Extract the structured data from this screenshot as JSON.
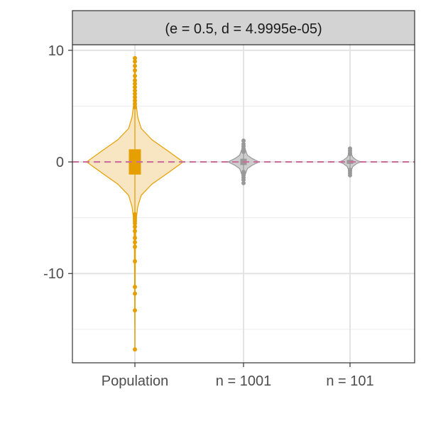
{
  "chart_data": {
    "type": "violin",
    "title": "",
    "facet_label": "(e = 0.5, d = 4.9995e-05)",
    "xlabel": "",
    "ylabel": "",
    "categories": [
      "Population",
      "n = 1001",
      "n = 101"
    ],
    "ylim": [
      -18,
      10.5
    ],
    "y_ticks": [
      10,
      0,
      -10
    ],
    "y_tick_labels": [
      "10",
      "0",
      "-10"
    ],
    "reference_line": {
      "y": 0,
      "style": "dashed",
      "color": "#cc6f9c"
    },
    "grid": true,
    "series": [
      {
        "category": "Population",
        "color": "#e69f00",
        "fill": "#f6dcae",
        "density": [
          [
            -16.8,
            0.0
          ],
          [
            -12,
            0.004
          ],
          [
            -8,
            0.01
          ],
          [
            -6,
            0.018
          ],
          [
            -5,
            0.03
          ],
          [
            -4,
            0.06
          ],
          [
            -3,
            0.13
          ],
          [
            -2,
            0.35
          ],
          [
            -1,
            0.68
          ],
          [
            0,
            1.0
          ],
          [
            1,
            0.68
          ],
          [
            2,
            0.35
          ],
          [
            3,
            0.13
          ],
          [
            4,
            0.06
          ],
          [
            5,
            0.03
          ],
          [
            6,
            0.018
          ],
          [
            8,
            0.01
          ],
          [
            9.3,
            0.0
          ]
        ],
        "box": {
          "q1": -1.1,
          "median": 0.0,
          "q3": 1.1,
          "whisker_low": -16.8,
          "whisker_high": 9.3
        },
        "outliers": [
          9.3,
          9.0,
          8.6,
          8.2,
          7.7,
          7.3,
          7.0,
          6.7,
          6.4,
          6.1,
          5.8,
          5.5,
          5.2,
          4.9,
          -4.7,
          -4.9,
          -5.1,
          -5.3,
          -5.5,
          -5.8,
          -6.2,
          -6.8,
          -7.2,
          -7.6,
          -8.9,
          -11.2,
          -11.8,
          -13.3,
          -16.8
        ]
      },
      {
        "category": "n = 1001",
        "color": "#999999",
        "fill": "#bdbdbd",
        "density": [
          [
            -1.9,
            0.0
          ],
          [
            -1.2,
            0.03
          ],
          [
            -0.6,
            0.08
          ],
          [
            -0.3,
            0.18
          ],
          [
            0,
            0.32
          ],
          [
            0.3,
            0.18
          ],
          [
            0.6,
            0.08
          ],
          [
            1.2,
            0.03
          ],
          [
            1.9,
            0.0
          ]
        ],
        "box": {
          "q1": -0.25,
          "median": 0.0,
          "q3": 0.25,
          "whisker_low": -1.9,
          "whisker_high": 1.9
        },
        "outliers": [
          1.9,
          1.6,
          1.4,
          1.2,
          1.0,
          0.9,
          -0.9,
          -1.0,
          -1.2,
          -1.4,
          -1.6,
          -1.9
        ]
      },
      {
        "category": "n = 101",
        "color": "#999999",
        "fill": "#bdbdbd",
        "density": [
          [
            -1.2,
            0.0
          ],
          [
            -0.8,
            0.02
          ],
          [
            -0.4,
            0.06
          ],
          [
            -0.15,
            0.14
          ],
          [
            0,
            0.22
          ],
          [
            0.15,
            0.14
          ],
          [
            0.4,
            0.06
          ],
          [
            0.8,
            0.02
          ],
          [
            1.2,
            0.0
          ]
        ],
        "box": {
          "q1": -0.15,
          "median": 0.0,
          "q3": 0.15,
          "whisker_low": -1.2,
          "whisker_high": 1.2
        },
        "outliers": [
          1.2,
          1.0,
          0.8,
          0.7,
          -0.7,
          -0.8,
          -1.0,
          -1.2
        ]
      }
    ]
  }
}
